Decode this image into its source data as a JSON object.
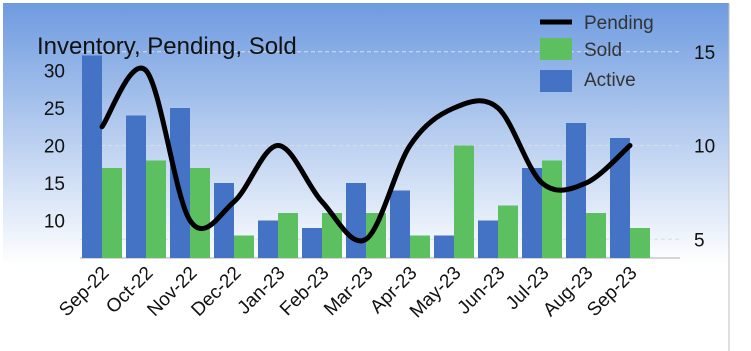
{
  "chart_data": {
    "type": "bar",
    "title": "Inventory, Pending, Sold",
    "categories": [
      "Sep-22",
      "Oct-22",
      "Nov-22",
      "Dec-22",
      "Jan-23",
      "Feb-23",
      "Mar-23",
      "Apr-23",
      "May-23",
      "Jun-23",
      "Jul-23",
      "Aug-23",
      "Sep-23"
    ],
    "series": [
      {
        "name": "Active",
        "type": "bar",
        "axis": "left",
        "color": "#4472C4",
        "values": [
          32,
          24,
          25,
          15,
          10,
          9,
          15,
          14,
          8,
          10,
          17,
          23,
          21
        ]
      },
      {
        "name": "Sold",
        "type": "bar",
        "axis": "left",
        "color": "#5CBF60",
        "values": [
          17,
          18,
          17,
          8,
          11,
          11,
          11,
          8,
          20,
          12,
          18,
          11,
          9
        ]
      },
      {
        "name": "Pending",
        "type": "line",
        "axis": "right",
        "color": "#000000",
        "values": [
          11,
          14,
          6,
          7,
          10,
          7,
          5,
          10,
          12,
          12,
          8,
          8,
          10
        ]
      }
    ],
    "y_left": {
      "ticks": [
        10,
        15,
        20,
        25,
        30
      ],
      "range": [
        5,
        35
      ]
    },
    "y_right": {
      "ticks": [
        5,
        10,
        15
      ],
      "range": [
        4,
        16
      ]
    },
    "legend_position": "top-right",
    "legend_order": [
      "Pending",
      "Sold",
      "Active"
    ],
    "background_gradient": [
      "#6E9BE0",
      "#FFFFFF"
    ]
  }
}
